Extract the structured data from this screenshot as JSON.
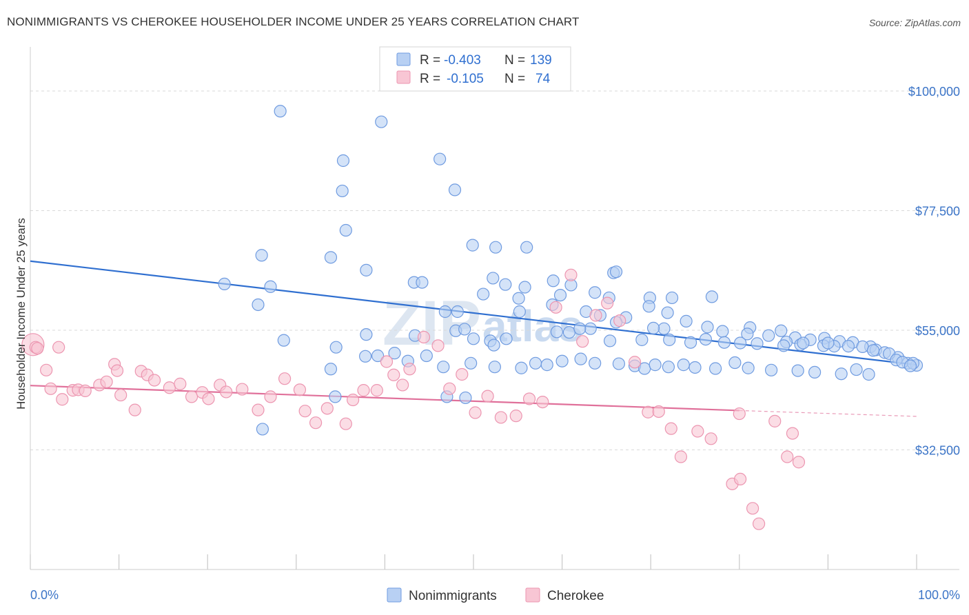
{
  "title": "NONIMMIGRANTS VS CHEROKEE HOUSEHOLDER INCOME UNDER 25 YEARS CORRELATION CHART",
  "source": "Source: ZipAtlas.com",
  "watermark": {
    "zip": "ZIP",
    "atlas": "atlas"
  },
  "colors": {
    "nonimmigrants_fill": "#b8d0f3",
    "nonimmigrants_stroke": "#6f9be0",
    "nonimmigrants_line": "#2f6fd0",
    "cherokee_fill": "#f8c6d4",
    "cherokee_stroke": "#ec95b0",
    "cherokee_line": "#e0709a",
    "grid": "#d9d9d9",
    "tick_text": "#3b74c7"
  },
  "legend": {
    "rows": [
      {
        "r_label": "R =",
        "r_value": "-0.403",
        "n_label": "N =",
        "n_value": "139"
      },
      {
        "r_label": "R =",
        "r_value": "-0.105",
        "n_label": "N =",
        "n_value": "74"
      }
    ]
  },
  "chart_data": {
    "type": "scatter",
    "title": "NONIMMIGRANTS VS CHEROKEE HOUSEHOLDER INCOME UNDER 25 YEARS CORRELATION CHART",
    "xlabel": "",
    "ylabel": "Householder Income Under 25 years",
    "x_unit": "percent",
    "xlim": [
      0,
      100
    ],
    "ylim": [
      10000,
      107000
    ],
    "x_tick_labels": [
      "0.0%",
      "100.0%"
    ],
    "y_ticks": [
      32500,
      55000,
      77500,
      100000
    ],
    "y_tick_labels": [
      "$32,500",
      "$55,000",
      "$77,500",
      "$100,000"
    ],
    "grid": "horizontal dashed",
    "legend_position": "top-center",
    "series": [
      {
        "name": "Nonimmigrants",
        "r": -0.403,
        "n": 139,
        "trend": {
          "x": [
            0,
            100
          ],
          "y": [
            68000,
            48500
          ]
        },
        "points": [
          [
            28.2,
            96200
          ],
          [
            39.6,
            94200
          ],
          [
            35.3,
            86900
          ],
          [
            46.2,
            87200
          ],
          [
            35.2,
            81200
          ],
          [
            47.9,
            81400
          ],
          [
            35.6,
            73800
          ],
          [
            26.1,
            69100
          ],
          [
            33.9,
            68700
          ],
          [
            52.5,
            70600
          ],
          [
            49.9,
            71000
          ],
          [
            56.0,
            70600
          ],
          [
            37.9,
            66300
          ],
          [
            65.8,
            65800
          ],
          [
            66.1,
            66000
          ],
          [
            52.2,
            64800
          ],
          [
            53.6,
            63600
          ],
          [
            21.9,
            63700
          ],
          [
            27.1,
            63200
          ],
          [
            43.3,
            64000
          ],
          [
            44.2,
            64000
          ],
          [
            61.0,
            63500
          ],
          [
            59.0,
            64300
          ],
          [
            55.8,
            63100
          ],
          [
            51.1,
            61800
          ],
          [
            55.1,
            61000
          ],
          [
            59.8,
            61600
          ],
          [
            63.7,
            62100
          ],
          [
            65.3,
            61100
          ],
          [
            69.9,
            61100
          ],
          [
            72.4,
            61100
          ],
          [
            76.9,
            61300
          ],
          [
            25.7,
            59800
          ],
          [
            58.9,
            59800
          ],
          [
            62.7,
            58500
          ],
          [
            64.3,
            57800
          ],
          [
            67.2,
            57400
          ],
          [
            69.8,
            59500
          ],
          [
            71.9,
            58300
          ],
          [
            66.1,
            56500
          ],
          [
            63.2,
            55300
          ],
          [
            46.8,
            58500
          ],
          [
            48.2,
            58500
          ],
          [
            55.2,
            58500
          ],
          [
            74.0,
            56700
          ],
          [
            76.4,
            55600
          ],
          [
            71.5,
            55300
          ],
          [
            70.3,
            55400
          ],
          [
            78.1,
            54800
          ],
          [
            81.2,
            55500
          ],
          [
            84.7,
            54900
          ],
          [
            80.9,
            54300
          ],
          [
            83.3,
            54000
          ],
          [
            86.3,
            53600
          ],
          [
            88.0,
            53200
          ],
          [
            89.6,
            53500
          ],
          [
            91.3,
            52900
          ],
          [
            92.8,
            52700
          ],
          [
            85.3,
            52800
          ],
          [
            86.9,
            52300
          ],
          [
            89.5,
            52100
          ],
          [
            90.7,
            52000
          ],
          [
            94.8,
            51900
          ],
          [
            95.4,
            51300
          ],
          [
            96.4,
            50800
          ],
          [
            97.9,
            49900
          ],
          [
            99.0,
            48800
          ],
          [
            100.0,
            48400
          ],
          [
            37.9,
            54200
          ],
          [
            43.4,
            54000
          ],
          [
            48.0,
            54900
          ],
          [
            49.0,
            55200
          ],
          [
            50.0,
            53400
          ],
          [
            51.9,
            53000
          ],
          [
            52.3,
            52200
          ],
          [
            53.7,
            53400
          ],
          [
            59.4,
            54700
          ],
          [
            60.8,
            54600
          ],
          [
            62.0,
            55300
          ],
          [
            65.4,
            53000
          ],
          [
            69.0,
            53200
          ],
          [
            72.1,
            53200
          ],
          [
            74.5,
            52700
          ],
          [
            76.2,
            53300
          ],
          [
            78.3,
            52700
          ],
          [
            80.1,
            52600
          ],
          [
            82.0,
            52500
          ],
          [
            85.0,
            52100
          ],
          [
            87.2,
            52600
          ],
          [
            90.0,
            52600
          ],
          [
            92.3,
            52000
          ],
          [
            93.9,
            51900
          ],
          [
            95.1,
            51200
          ],
          [
            96.9,
            50600
          ],
          [
            97.7,
            49400
          ],
          [
            98.4,
            49000
          ],
          [
            99.6,
            48800
          ],
          [
            99.3,
            48300
          ],
          [
            28.6,
            53100
          ],
          [
            34.5,
            51800
          ],
          [
            37.8,
            50100
          ],
          [
            39.2,
            50200
          ],
          [
            41.1,
            50700
          ],
          [
            42.6,
            49200
          ],
          [
            44.7,
            50200
          ],
          [
            46.6,
            48100
          ],
          [
            49.7,
            48800
          ],
          [
            52.4,
            48100
          ],
          [
            55.4,
            47900
          ],
          [
            57.0,
            48800
          ],
          [
            58.3,
            48500
          ],
          [
            60.0,
            49200
          ],
          [
            62.1,
            49600
          ],
          [
            63.7,
            48800
          ],
          [
            66.4,
            48700
          ],
          [
            68.2,
            48300
          ],
          [
            69.3,
            47800
          ],
          [
            70.5,
            48500
          ],
          [
            72.0,
            48100
          ],
          [
            73.7,
            48500
          ],
          [
            75.0,
            48000
          ],
          [
            77.3,
            47800
          ],
          [
            79.5,
            48900
          ],
          [
            81.0,
            47900
          ],
          [
            83.6,
            47500
          ],
          [
            86.6,
            47400
          ],
          [
            88.5,
            47100
          ],
          [
            91.5,
            46800
          ],
          [
            93.2,
            47600
          ],
          [
            94.6,
            46700
          ],
          [
            26.2,
            36400
          ],
          [
            33.9,
            47700
          ],
          [
            34.4,
            42500
          ],
          [
            47.0,
            42500
          ],
          [
            49.1,
            42300
          ]
        ]
      },
      {
        "name": "Cherokee",
        "r": -0.105,
        "n": 74,
        "trend": {
          "x": [
            0,
            80
          ],
          "y": [
            44600,
            39900
          ]
        },
        "trend_dashed": {
          "x": [
            80,
            100
          ],
          "y": [
            39900,
            38800
          ]
        },
        "points": [
          [
            0.3,
            52300
          ],
          [
            0.6,
            51800
          ],
          [
            0.8,
            51600
          ],
          [
            3.2,
            51800
          ],
          [
            1.8,
            47500
          ],
          [
            2.3,
            44000
          ],
          [
            3.6,
            42000
          ],
          [
            4.8,
            43700
          ],
          [
            5.4,
            43800
          ],
          [
            6.2,
            43600
          ],
          [
            7.8,
            44700
          ],
          [
            8.6,
            45300
          ],
          [
            9.5,
            48600
          ],
          [
            9.8,
            47400
          ],
          [
            10.2,
            42800
          ],
          [
            11.8,
            40000
          ],
          [
            12.5,
            47300
          ],
          [
            13.2,
            46600
          ],
          [
            14.0,
            45600
          ],
          [
            15.7,
            44200
          ],
          [
            16.9,
            44900
          ],
          [
            18.2,
            42500
          ],
          [
            19.4,
            43300
          ],
          [
            20.1,
            42100
          ],
          [
            21.4,
            44700
          ],
          [
            22.1,
            43400
          ],
          [
            23.9,
            43900
          ],
          [
            25.7,
            40000
          ],
          [
            27.1,
            42500
          ],
          [
            28.7,
            45900
          ],
          [
            30.4,
            43800
          ],
          [
            31.0,
            39800
          ],
          [
            32.2,
            37600
          ],
          [
            33.5,
            40300
          ],
          [
            35.6,
            37400
          ],
          [
            36.4,
            41900
          ],
          [
            37.6,
            43700
          ],
          [
            39.1,
            43700
          ],
          [
            40.2,
            49100
          ],
          [
            41.0,
            46600
          ],
          [
            42.0,
            44700
          ],
          [
            42.8,
            47700
          ],
          [
            44.4,
            53700
          ],
          [
            46.0,
            52100
          ],
          [
            47.3,
            44000
          ],
          [
            48.7,
            46700
          ],
          [
            50.2,
            39500
          ],
          [
            51.6,
            42600
          ],
          [
            53.1,
            38600
          ],
          [
            54.8,
            38900
          ],
          [
            56.3,
            42100
          ],
          [
            57.8,
            41500
          ],
          [
            59.3,
            59300
          ],
          [
            61.0,
            65400
          ],
          [
            62.3,
            52900
          ],
          [
            63.8,
            57800
          ],
          [
            65.1,
            60100
          ],
          [
            66.5,
            56800
          ],
          [
            68.2,
            49000
          ],
          [
            69.7,
            39600
          ],
          [
            70.9,
            39700
          ],
          [
            72.3,
            36500
          ],
          [
            73.4,
            31200
          ],
          [
            75.3,
            36000
          ],
          [
            76.8,
            34600
          ],
          [
            79.2,
            26100
          ],
          [
            80.1,
            27000
          ],
          [
            81.5,
            21500
          ],
          [
            82.2,
            18600
          ],
          [
            84.0,
            37900
          ],
          [
            85.4,
            31200
          ],
          [
            86.7,
            30200
          ],
          [
            80.0,
            39300
          ],
          [
            86.0,
            35600
          ]
        ]
      }
    ]
  },
  "bottom_legend": [
    {
      "label": "Nonimmigrants"
    },
    {
      "label": "Cherokee"
    }
  ]
}
